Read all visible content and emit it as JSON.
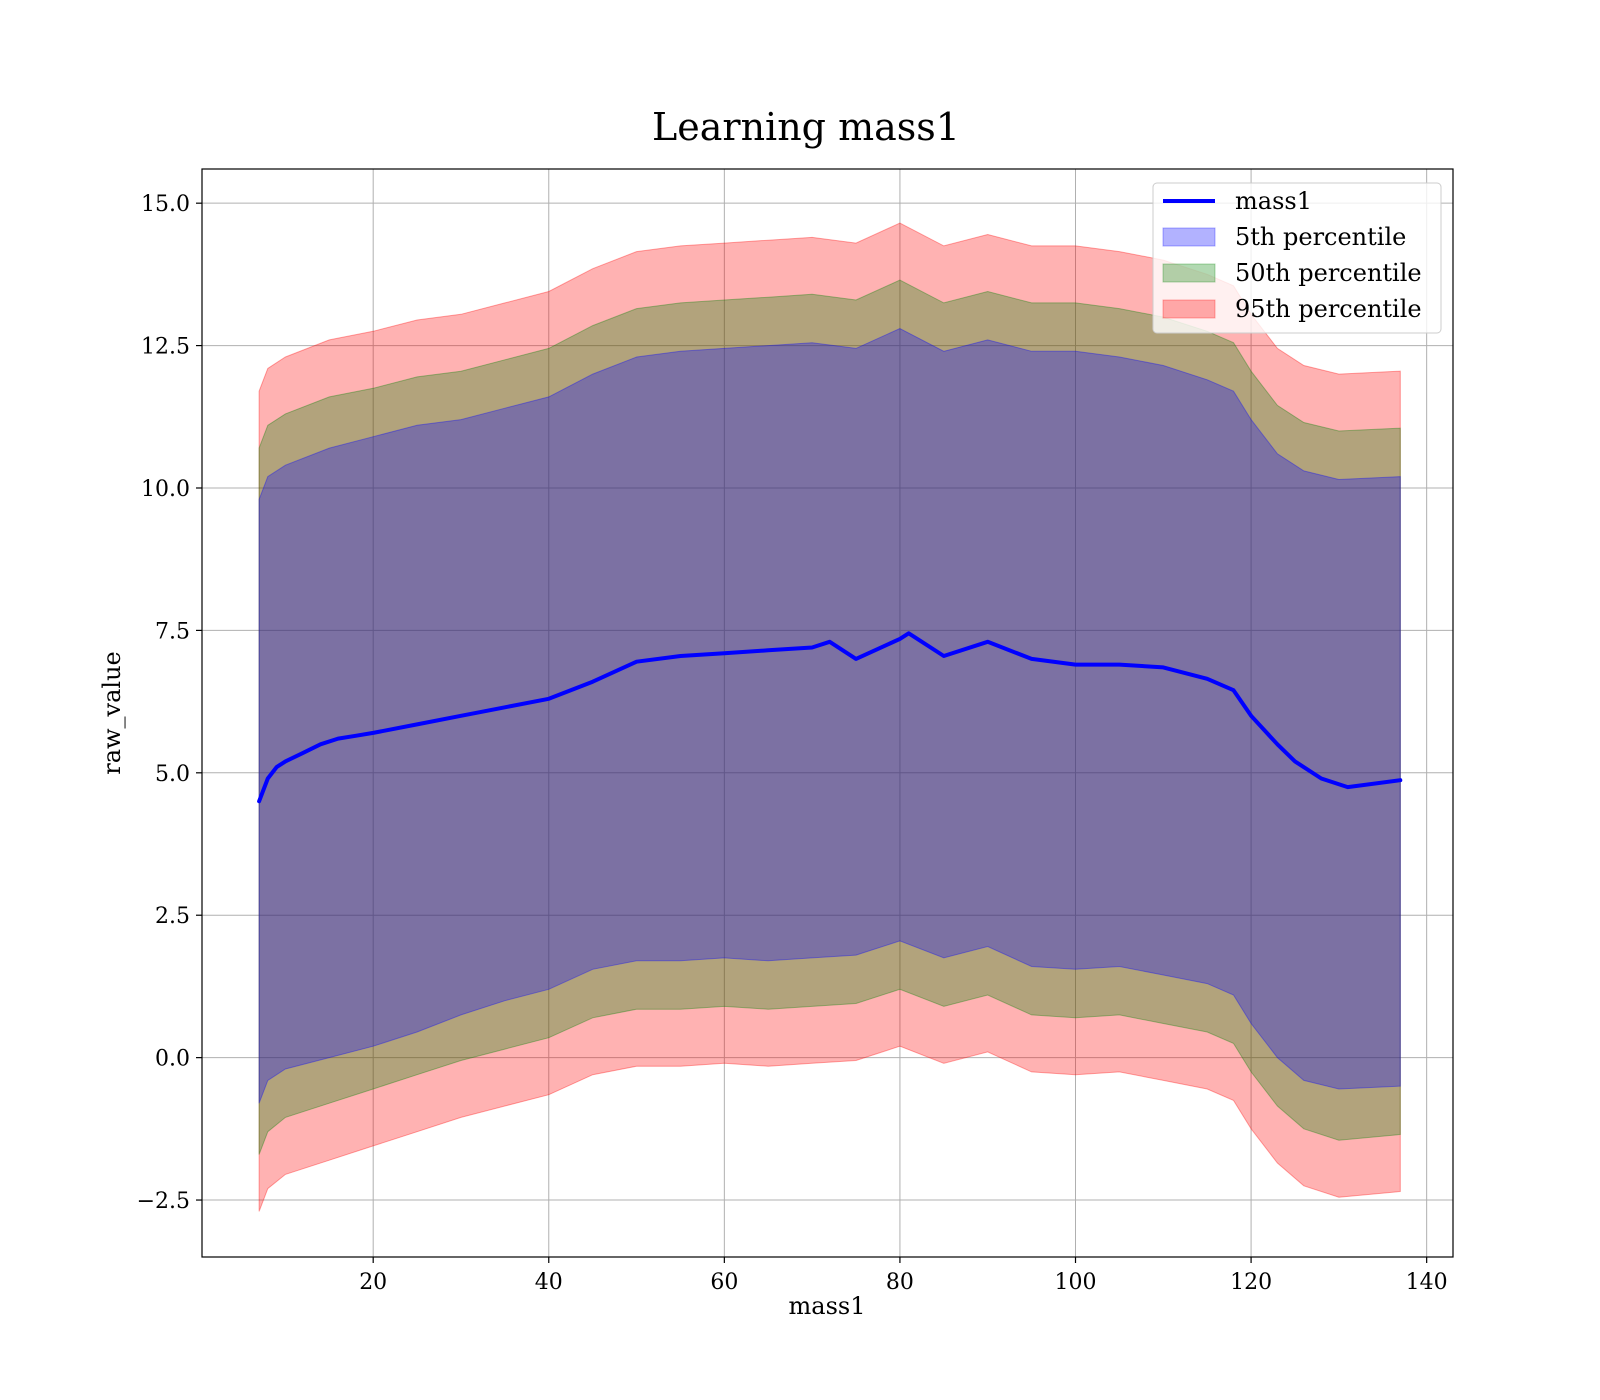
{
  "chart_data": {
    "type": "area",
    "title": "Learning mass1",
    "xlabel": "mass1",
    "ylabel": "raw_value",
    "xlim": [
      0.5,
      143
    ],
    "ylim": [
      -3.5,
      15.6
    ],
    "x_ticks": [
      20,
      40,
      60,
      80,
      100,
      120,
      140
    ],
    "x_tick_labels": [
      "20",
      "40",
      "60",
      "80",
      "100",
      "120",
      "140"
    ],
    "y_ticks": [
      -2.5,
      0.0,
      2.5,
      5.0,
      7.5,
      10.0,
      12.5,
      15.0
    ],
    "y_tick_labels": [
      "−2.5",
      "0.0",
      "2.5",
      "5.0",
      "7.5",
      "10.0",
      "12.5",
      "15.0"
    ],
    "grid": true,
    "legend_position": "top-right",
    "colors": {
      "line": "#0000ff",
      "band_5": "#0000ff",
      "band_50": "#008000",
      "band_95": "#ff0000"
    },
    "series": [
      {
        "name": "mass1",
        "kind": "line",
        "x": [
          7,
          8,
          9,
          10,
          12,
          14,
          16,
          18,
          20,
          25,
          30,
          35,
          40,
          45,
          50,
          55,
          60,
          65,
          70,
          72,
          75,
          80,
          81,
          85,
          90,
          95,
          100,
          105,
          110,
          115,
          118,
          120,
          123,
          125,
          128,
          131,
          137
        ],
        "y": [
          4.5,
          4.9,
          5.1,
          5.2,
          5.35,
          5.5,
          5.6,
          5.65,
          5.7,
          5.85,
          6.0,
          6.15,
          6.3,
          6.6,
          6.95,
          7.05,
          7.1,
          7.15,
          7.2,
          7.3,
          7.0,
          7.35,
          7.45,
          7.05,
          7.3,
          7.0,
          6.9,
          6.9,
          6.85,
          6.65,
          6.45,
          6.0,
          5.5,
          5.2,
          4.9,
          4.75,
          4.87
        ]
      },
      {
        "name": "5th percentile",
        "kind": "band",
        "x": [
          7,
          8,
          10,
          15,
          20,
          25,
          30,
          35,
          40,
          45,
          50,
          55,
          60,
          65,
          70,
          75,
          80,
          85,
          90,
          95,
          100,
          105,
          110,
          115,
          118,
          120,
          123,
          126,
          130,
          137
        ],
        "lower": [
          -0.8,
          -0.4,
          -0.2,
          0.0,
          0.2,
          0.45,
          0.75,
          1.0,
          1.2,
          1.55,
          1.7,
          1.7,
          1.75,
          1.7,
          1.75,
          1.8,
          2.05,
          1.75,
          1.95,
          1.6,
          1.55,
          1.6,
          1.45,
          1.3,
          1.1,
          0.6,
          0.0,
          -0.4,
          -0.55,
          -0.5
        ],
        "upper": [
          9.8,
          10.2,
          10.4,
          10.7,
          10.9,
          11.1,
          11.2,
          11.4,
          11.6,
          12.0,
          12.3,
          12.4,
          12.45,
          12.5,
          12.55,
          12.45,
          12.8,
          12.4,
          12.6,
          12.4,
          12.4,
          12.3,
          12.15,
          11.9,
          11.7,
          11.2,
          10.6,
          10.3,
          10.15,
          10.2
        ]
      },
      {
        "name": "50th percentile",
        "kind": "band",
        "x": [
          7,
          8,
          10,
          15,
          20,
          25,
          30,
          35,
          40,
          45,
          50,
          55,
          60,
          65,
          70,
          75,
          80,
          85,
          90,
          95,
          100,
          105,
          110,
          115,
          118,
          120,
          123,
          126,
          130,
          137
        ],
        "lower": [
          -1.7,
          -1.3,
          -1.05,
          -0.8,
          -0.55,
          -0.3,
          -0.05,
          0.15,
          0.35,
          0.7,
          0.85,
          0.85,
          0.9,
          0.85,
          0.9,
          0.95,
          1.2,
          0.9,
          1.1,
          0.75,
          0.7,
          0.75,
          0.6,
          0.45,
          0.25,
          -0.25,
          -0.85,
          -1.25,
          -1.45,
          -1.35
        ],
        "upper": [
          10.7,
          11.1,
          11.3,
          11.6,
          11.75,
          11.95,
          12.05,
          12.25,
          12.45,
          12.85,
          13.15,
          13.25,
          13.3,
          13.35,
          13.4,
          13.3,
          13.65,
          13.25,
          13.45,
          13.25,
          13.25,
          13.15,
          13.0,
          12.75,
          12.55,
          12.05,
          11.45,
          11.15,
          11.0,
          11.05
        ]
      },
      {
        "name": "95th percentile",
        "kind": "band",
        "x": [
          7,
          8,
          10,
          15,
          20,
          25,
          30,
          35,
          40,
          45,
          50,
          55,
          60,
          65,
          70,
          75,
          80,
          85,
          90,
          95,
          100,
          105,
          110,
          115,
          118,
          120,
          123,
          126,
          130,
          137
        ],
        "lower": [
          -2.7,
          -2.3,
          -2.05,
          -1.8,
          -1.55,
          -1.3,
          -1.05,
          -0.85,
          -0.65,
          -0.3,
          -0.15,
          -0.15,
          -0.1,
          -0.15,
          -0.1,
          -0.05,
          0.2,
          -0.1,
          0.1,
          -0.25,
          -0.3,
          -0.25,
          -0.4,
          -0.55,
          -0.75,
          -1.25,
          -1.85,
          -2.25,
          -2.45,
          -2.35
        ],
        "upper": [
          11.7,
          12.1,
          12.3,
          12.6,
          12.75,
          12.95,
          13.05,
          13.25,
          13.45,
          13.85,
          14.15,
          14.25,
          14.3,
          14.35,
          14.4,
          14.3,
          14.65,
          14.25,
          14.45,
          14.25,
          14.25,
          14.15,
          14.0,
          13.75,
          13.55,
          13.05,
          12.45,
          12.15,
          12.0,
          12.05
        ]
      }
    ]
  }
}
